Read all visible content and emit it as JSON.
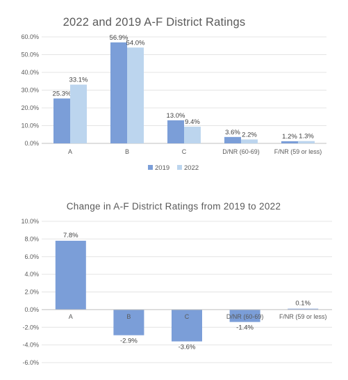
{
  "chart_data": [
    {
      "type": "bar",
      "title": "2022 and 2019 A-F District Ratings",
      "categories": [
        "A",
        "B",
        "C",
        "D/NR (60-69)",
        "F/NR (59 or less)"
      ],
      "series": [
        {
          "name": "2019",
          "values": [
            25.3,
            56.9,
            13.0,
            3.6,
            1.2
          ],
          "labels": [
            "25.3%",
            "56.9%",
            "13.0%",
            "3.6%",
            "1.2%"
          ],
          "color": "#7b9ed8"
        },
        {
          "name": "2022",
          "values": [
            33.1,
            54.0,
            9.4,
            2.2,
            1.3
          ],
          "labels": [
            "33.1%",
            "54.0%",
            "9.4%",
            "2.2%",
            "1.3%"
          ],
          "color": "#bcd5ee"
        }
      ],
      "ylim": [
        0,
        60
      ],
      "yticks": [
        0,
        10,
        20,
        30,
        40,
        50,
        60
      ],
      "ytick_labels": [
        "0.0%",
        "10.0%",
        "20.0%",
        "30.0%",
        "40.0%",
        "50.0%",
        "60.0%"
      ],
      "legend_position": "bottom",
      "grid": true
    },
    {
      "type": "bar",
      "title": "Change in A-F District Ratings from 2019 to 2022",
      "categories": [
        "A",
        "B",
        "C",
        "D/NR (60-69)",
        "F/NR (59 or less)"
      ],
      "series": [
        {
          "values": [
            7.8,
            -2.9,
            -3.6,
            -1.4,
            0.1
          ],
          "labels": [
            "7.8%",
            "-2.9%",
            "-3.6%",
            "-1.4%",
            "0.1%"
          ],
          "color": "#7b9ed8"
        }
      ],
      "ylim": [
        -6,
        10
      ],
      "yticks": [
        -6,
        -4,
        -2,
        0,
        2,
        4,
        6,
        8,
        10
      ],
      "ytick_labels": [
        "-6.0%",
        "-4.0%",
        "-2.0%",
        "0.0%",
        "2.0%",
        "4.0%",
        "6.0%",
        "8.0%",
        "10.0%"
      ],
      "grid": true
    }
  ]
}
